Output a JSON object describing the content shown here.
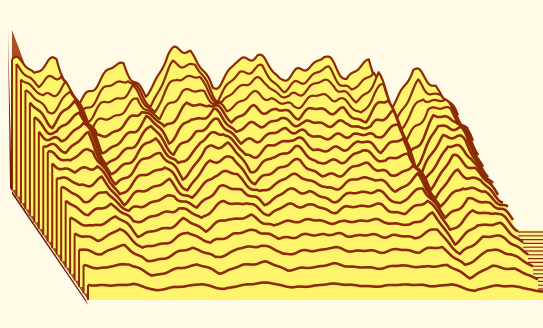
{
  "chart_data": {
    "type": "waterfall-3d-line",
    "title": "",
    "xlabel": "",
    "ylabel": "",
    "zlabel": "",
    "grid": false,
    "legend": false,
    "colors": {
      "background": "#fffbe6",
      "fill": "#fff56c",
      "line": "#8b2a05",
      "floor": "#fff19a"
    },
    "x": [
      0,
      5,
      10,
      15,
      20,
      25,
      30,
      35,
      40,
      45,
      50,
      55,
      60,
      65,
      70,
      75,
      80,
      85,
      90,
      95,
      100
    ],
    "base_profile": [
      0.9,
      0.78,
      0.92,
      0.6,
      0.74,
      0.88,
      0.67,
      0.91,
      0.95,
      0.74,
      0.86,
      0.9,
      0.8,
      0.84,
      0.88,
      0.78,
      0.93,
      0.52,
      0.82,
      0.76,
      0.5
    ],
    "series_count": 18,
    "series": [
      {
        "name": "",
        "scale": 1.0
      },
      {
        "name": "",
        "scale": 0.96
      },
      {
        "name": "",
        "scale": 0.93
      },
      {
        "name": "",
        "scale": 0.89
      },
      {
        "name": "",
        "scale": 0.85
      },
      {
        "name": "",
        "scale": 0.81
      },
      {
        "name": "",
        "scale": 0.77
      },
      {
        "name": "",
        "scale": 0.73
      },
      {
        "name": "",
        "scale": 0.69
      },
      {
        "name": "",
        "scale": 0.64
      },
      {
        "name": "",
        "scale": 0.59
      },
      {
        "name": "",
        "scale": 0.54
      },
      {
        "name": "",
        "scale": 0.49
      },
      {
        "name": "",
        "scale": 0.43
      },
      {
        "name": "",
        "scale": 0.37
      },
      {
        "name": "",
        "scale": 0.3
      },
      {
        "name": "",
        "scale": 0.22
      },
      {
        "name": "",
        "scale": 0.12
      }
    ]
  }
}
